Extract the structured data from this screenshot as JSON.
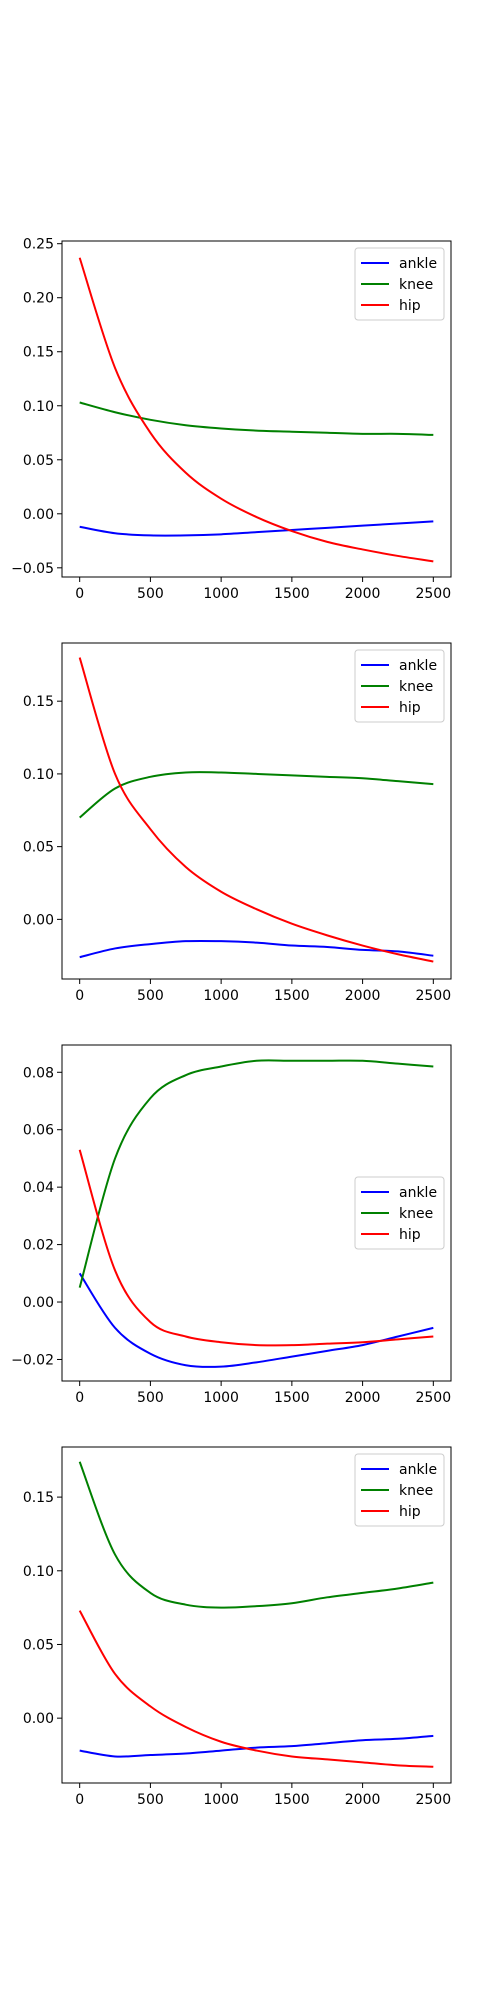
{
  "chart_data": [
    {
      "type": "line",
      "xlim": [
        -125,
        2625
      ],
      "ylim": [
        -0.0585,
        0.2525
      ],
      "xticks": [
        0,
        500,
        1000,
        1500,
        2000,
        2500
      ],
      "xtick_labels": [
        "0",
        "500",
        "1000",
        "1500",
        "2000",
        "2500"
      ],
      "yticks": [
        -0.05,
        0.0,
        0.05,
        0.1,
        0.15,
        0.2,
        0.25
      ],
      "ytick_labels": [
        "−0.05",
        "0.00",
        "0.05",
        "0.10",
        "0.15",
        "0.20",
        "0.25"
      ],
      "legend_position": "upper-right",
      "x": [
        0,
        250,
        500,
        750,
        1000,
        1250,
        1500,
        1750,
        2000,
        2250,
        2500
      ],
      "series": [
        {
          "name": "ankle",
          "color": "#0000ff",
          "values": [
            -0.012,
            -0.018,
            -0.02,
            -0.02,
            -0.019,
            -0.017,
            -0.015,
            -0.013,
            -0.011,
            -0.009,
            -0.007
          ]
        },
        {
          "name": "knee",
          "color": "#008000",
          "values": [
            0.103,
            0.094,
            0.087,
            0.082,
            0.079,
            0.077,
            0.076,
            0.075,
            0.074,
            0.074,
            0.073
          ]
        },
        {
          "name": "hip",
          "color": "#ff0000",
          "values": [
            0.237,
            0.135,
            0.075,
            0.038,
            0.014,
            -0.003,
            -0.016,
            -0.026,
            -0.033,
            -0.039,
            -0.044
          ]
        }
      ]
    },
    {
      "type": "line",
      "xlim": [
        -125,
        2625
      ],
      "ylim": [
        -0.041,
        0.19
      ],
      "xticks": [
        0,
        500,
        1000,
        1500,
        2000,
        2500
      ],
      "xtick_labels": [
        "0",
        "500",
        "1000",
        "1500",
        "2000",
        "2500"
      ],
      "yticks": [
        0.0,
        0.05,
        0.1,
        0.15
      ],
      "ytick_labels": [
        "0.00",
        "0.05",
        "0.10",
        "0.15"
      ],
      "legend_position": "upper-right",
      "x": [
        0,
        250,
        500,
        750,
        1000,
        1250,
        1500,
        1750,
        2000,
        2250,
        2500
      ],
      "series": [
        {
          "name": "ankle",
          "color": "#0000ff",
          "values": [
            -0.026,
            -0.02,
            -0.017,
            -0.015,
            -0.015,
            -0.016,
            -0.018,
            -0.019,
            -0.021,
            -0.022,
            -0.025
          ]
        },
        {
          "name": "knee",
          "color": "#008000",
          "values": [
            0.07,
            0.09,
            0.098,
            0.101,
            0.101,
            0.1,
            0.099,
            0.098,
            0.097,
            0.095,
            0.093
          ]
        },
        {
          "name": "hip",
          "color": "#ff0000",
          "values": [
            0.18,
            0.1,
            0.062,
            0.036,
            0.019,
            0.007,
            -0.003,
            -0.011,
            -0.018,
            -0.024,
            -0.029
          ]
        }
      ]
    },
    {
      "type": "line",
      "xlim": [
        -125,
        2625
      ],
      "ylim": [
        -0.0275,
        0.0895
      ],
      "xticks": [
        0,
        500,
        1000,
        1500,
        2000,
        2500
      ],
      "xtick_labels": [
        "0",
        "500",
        "1000",
        "1500",
        "2000",
        "2500"
      ],
      "yticks": [
        -0.02,
        0.0,
        0.02,
        0.04,
        0.06,
        0.08
      ],
      "ytick_labels": [
        "−0.02",
        "0.00",
        "0.02",
        "0.04",
        "0.06",
        "0.08"
      ],
      "legend_position": "center-right",
      "x": [
        0,
        250,
        500,
        750,
        1000,
        1250,
        1500,
        1750,
        2000,
        2250,
        2500
      ],
      "series": [
        {
          "name": "ankle",
          "color": "#0000ff",
          "values": [
            0.01,
            -0.009,
            -0.018,
            -0.022,
            -0.0225,
            -0.021,
            -0.019,
            -0.017,
            -0.015,
            -0.012,
            -0.009
          ]
        },
        {
          "name": "knee",
          "color": "#008000",
          "values": [
            0.005,
            0.05,
            0.071,
            0.079,
            0.082,
            0.084,
            0.084,
            0.084,
            0.084,
            0.083,
            0.082
          ]
        },
        {
          "name": "hip",
          "color": "#ff0000",
          "values": [
            0.053,
            0.011,
            -0.007,
            -0.012,
            -0.014,
            -0.015,
            -0.015,
            -0.0145,
            -0.014,
            -0.013,
            -0.012
          ]
        }
      ]
    },
    {
      "type": "line",
      "xlim": [
        -125,
        2625
      ],
      "ylim": [
        -0.044,
        0.184
      ],
      "xticks": [
        0,
        500,
        1000,
        1500,
        2000,
        2500
      ],
      "xtick_labels": [
        "0",
        "500",
        "1000",
        "1500",
        "2000",
        "2500"
      ],
      "yticks": [
        0.0,
        0.05,
        0.1,
        0.15
      ],
      "ytick_labels": [
        "0.00",
        "0.05",
        "0.10",
        "0.15"
      ],
      "legend_position": "upper-right",
      "x": [
        0,
        250,
        500,
        750,
        1000,
        1250,
        1500,
        1750,
        2000,
        2250,
        2500
      ],
      "series": [
        {
          "name": "ankle",
          "color": "#0000ff",
          "values": [
            -0.022,
            -0.026,
            -0.025,
            -0.024,
            -0.022,
            -0.02,
            -0.019,
            -0.017,
            -0.015,
            -0.014,
            -0.012
          ]
        },
        {
          "name": "knee",
          "color": "#008000",
          "values": [
            0.174,
            0.111,
            0.085,
            0.077,
            0.075,
            0.076,
            0.078,
            0.082,
            0.085,
            0.088,
            0.092
          ]
        },
        {
          "name": "hip",
          "color": "#ff0000",
          "values": [
            0.073,
            0.03,
            0.008,
            -0.006,
            -0.016,
            -0.022,
            -0.026,
            -0.028,
            -0.03,
            -0.032,
            -0.033
          ]
        }
      ]
    }
  ]
}
